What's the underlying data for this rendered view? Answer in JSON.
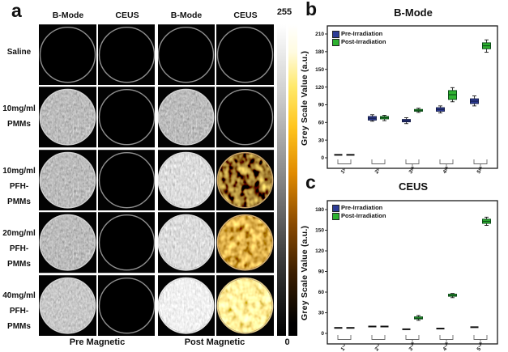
{
  "panel_a": {
    "label": "a",
    "col_headers": [
      "B-Mode",
      "CEUS",
      "B-Mode",
      "CEUS"
    ],
    "scale_max": "255",
    "scale_min": "0",
    "rows": [
      {
        "label1": "Saline",
        "label2": "",
        "cells": [
          "black",
          "black",
          "black",
          "black"
        ]
      },
      {
        "label1": "10mg/ml",
        "label2": "PMMs",
        "cells": [
          "gray-mid",
          "black",
          "gray-mid",
          "black"
        ]
      },
      {
        "label1": "10mg/ml",
        "label2": "PFH-PMMs",
        "cells": [
          "gray-mid",
          "black",
          "gray-bright",
          "gold-dark"
        ]
      },
      {
        "label1": "20mg/ml",
        "label2": "PFH-PMMs",
        "cells": [
          "gray-mid",
          "black",
          "gray-bright",
          "gold-mid"
        ]
      },
      {
        "label1": "40mg/ml",
        "label2": "PFH-PMMs",
        "cells": [
          "gray-mid2",
          "black",
          "gray-white",
          "gold-bright"
        ]
      }
    ],
    "footer_left": "Pre Magnetic",
    "footer_right": "Post Magnetic"
  },
  "chart_data": [
    {
      "panel_label": "b",
      "type": "box",
      "title": "B-Mode",
      "ylabel": "Grey Scale Value (a.u.)",
      "ylim": [
        0,
        210
      ],
      "ytick_step": 30,
      "grid": false,
      "legend_position": "top-left",
      "categories": [
        "1'",
        "2'",
        "3'",
        "4'",
        "5'"
      ],
      "significance_brackets": [
        false,
        false,
        true,
        true,
        true
      ],
      "series": [
        {
          "name": "Pre-Irradiation",
          "color": "#2d3c96",
          "edge": "#151d4a",
          "points": [
            {
              "kind": "dash",
              "v": 5
            },
            {
              "kind": "box",
              "lo": 62,
              "q1": 64,
              "med": 67,
              "q3": 70,
              "hi": 73
            },
            {
              "kind": "box",
              "lo": 58,
              "q1": 61,
              "med": 63,
              "q3": 65,
              "hi": 68
            },
            {
              "kind": "box",
              "lo": 76,
              "q1": 79,
              "med": 82,
              "q3": 85,
              "hi": 88
            },
            {
              "kind": "box",
              "lo": 88,
              "q1": 92,
              "med": 96,
              "q3": 100,
              "hi": 105
            }
          ]
        },
        {
          "name": "Post-Irradiation",
          "color": "#2eb230",
          "edge": "#0c4d18",
          "points": [
            {
              "kind": "dash",
              "v": 5
            },
            {
              "kind": "box",
              "lo": 63,
              "q1": 66,
              "med": 68,
              "q3": 70,
              "hi": 72
            },
            {
              "kind": "box",
              "lo": 77,
              "q1": 79,
              "med": 80,
              "q3": 82,
              "hi": 84
            },
            {
              "kind": "box",
              "lo": 95,
              "q1": 99,
              "med": 107,
              "q3": 114,
              "hi": 119
            },
            {
              "kind": "box",
              "lo": 179,
              "q1": 185,
              "med": 190,
              "q3": 195,
              "hi": 200
            }
          ]
        }
      ]
    },
    {
      "panel_label": "c",
      "type": "box",
      "title": "CEUS",
      "ylabel": "Grey Scale Value (a.u.)",
      "ylim": [
        0,
        180
      ],
      "ytick_step": 30,
      "grid": false,
      "legend_position": "top-left",
      "categories": [
        "1'",
        "2'",
        "3'",
        "4'",
        "5'"
      ],
      "significance_brackets": [
        false,
        false,
        true,
        true,
        true
      ],
      "series": [
        {
          "name": "Pre-Irradiation",
          "color": "#2d3c96",
          "edge": "#151d4a",
          "points": [
            {
              "kind": "dash",
              "v": 8
            },
            {
              "kind": "dash",
              "v": 10
            },
            {
              "kind": "dash",
              "v": 6
            },
            {
              "kind": "dash",
              "v": 7
            },
            {
              "kind": "dash",
              "v": 9
            }
          ]
        },
        {
          "name": "Post-Irradiation",
          "color": "#2eb230",
          "edge": "#0c4d18",
          "points": [
            {
              "kind": "dash",
              "v": 8
            },
            {
              "kind": "dash",
              "v": 10
            },
            {
              "kind": "box",
              "lo": 19,
              "q1": 21,
              "med": 22,
              "q3": 24,
              "hi": 26
            },
            {
              "kind": "box",
              "lo": 52,
              "q1": 54,
              "med": 55,
              "q3": 57,
              "hi": 58
            },
            {
              "kind": "box",
              "lo": 157,
              "q1": 160,
              "med": 163,
              "q3": 166,
              "hi": 169
            }
          ]
        }
      ]
    }
  ]
}
